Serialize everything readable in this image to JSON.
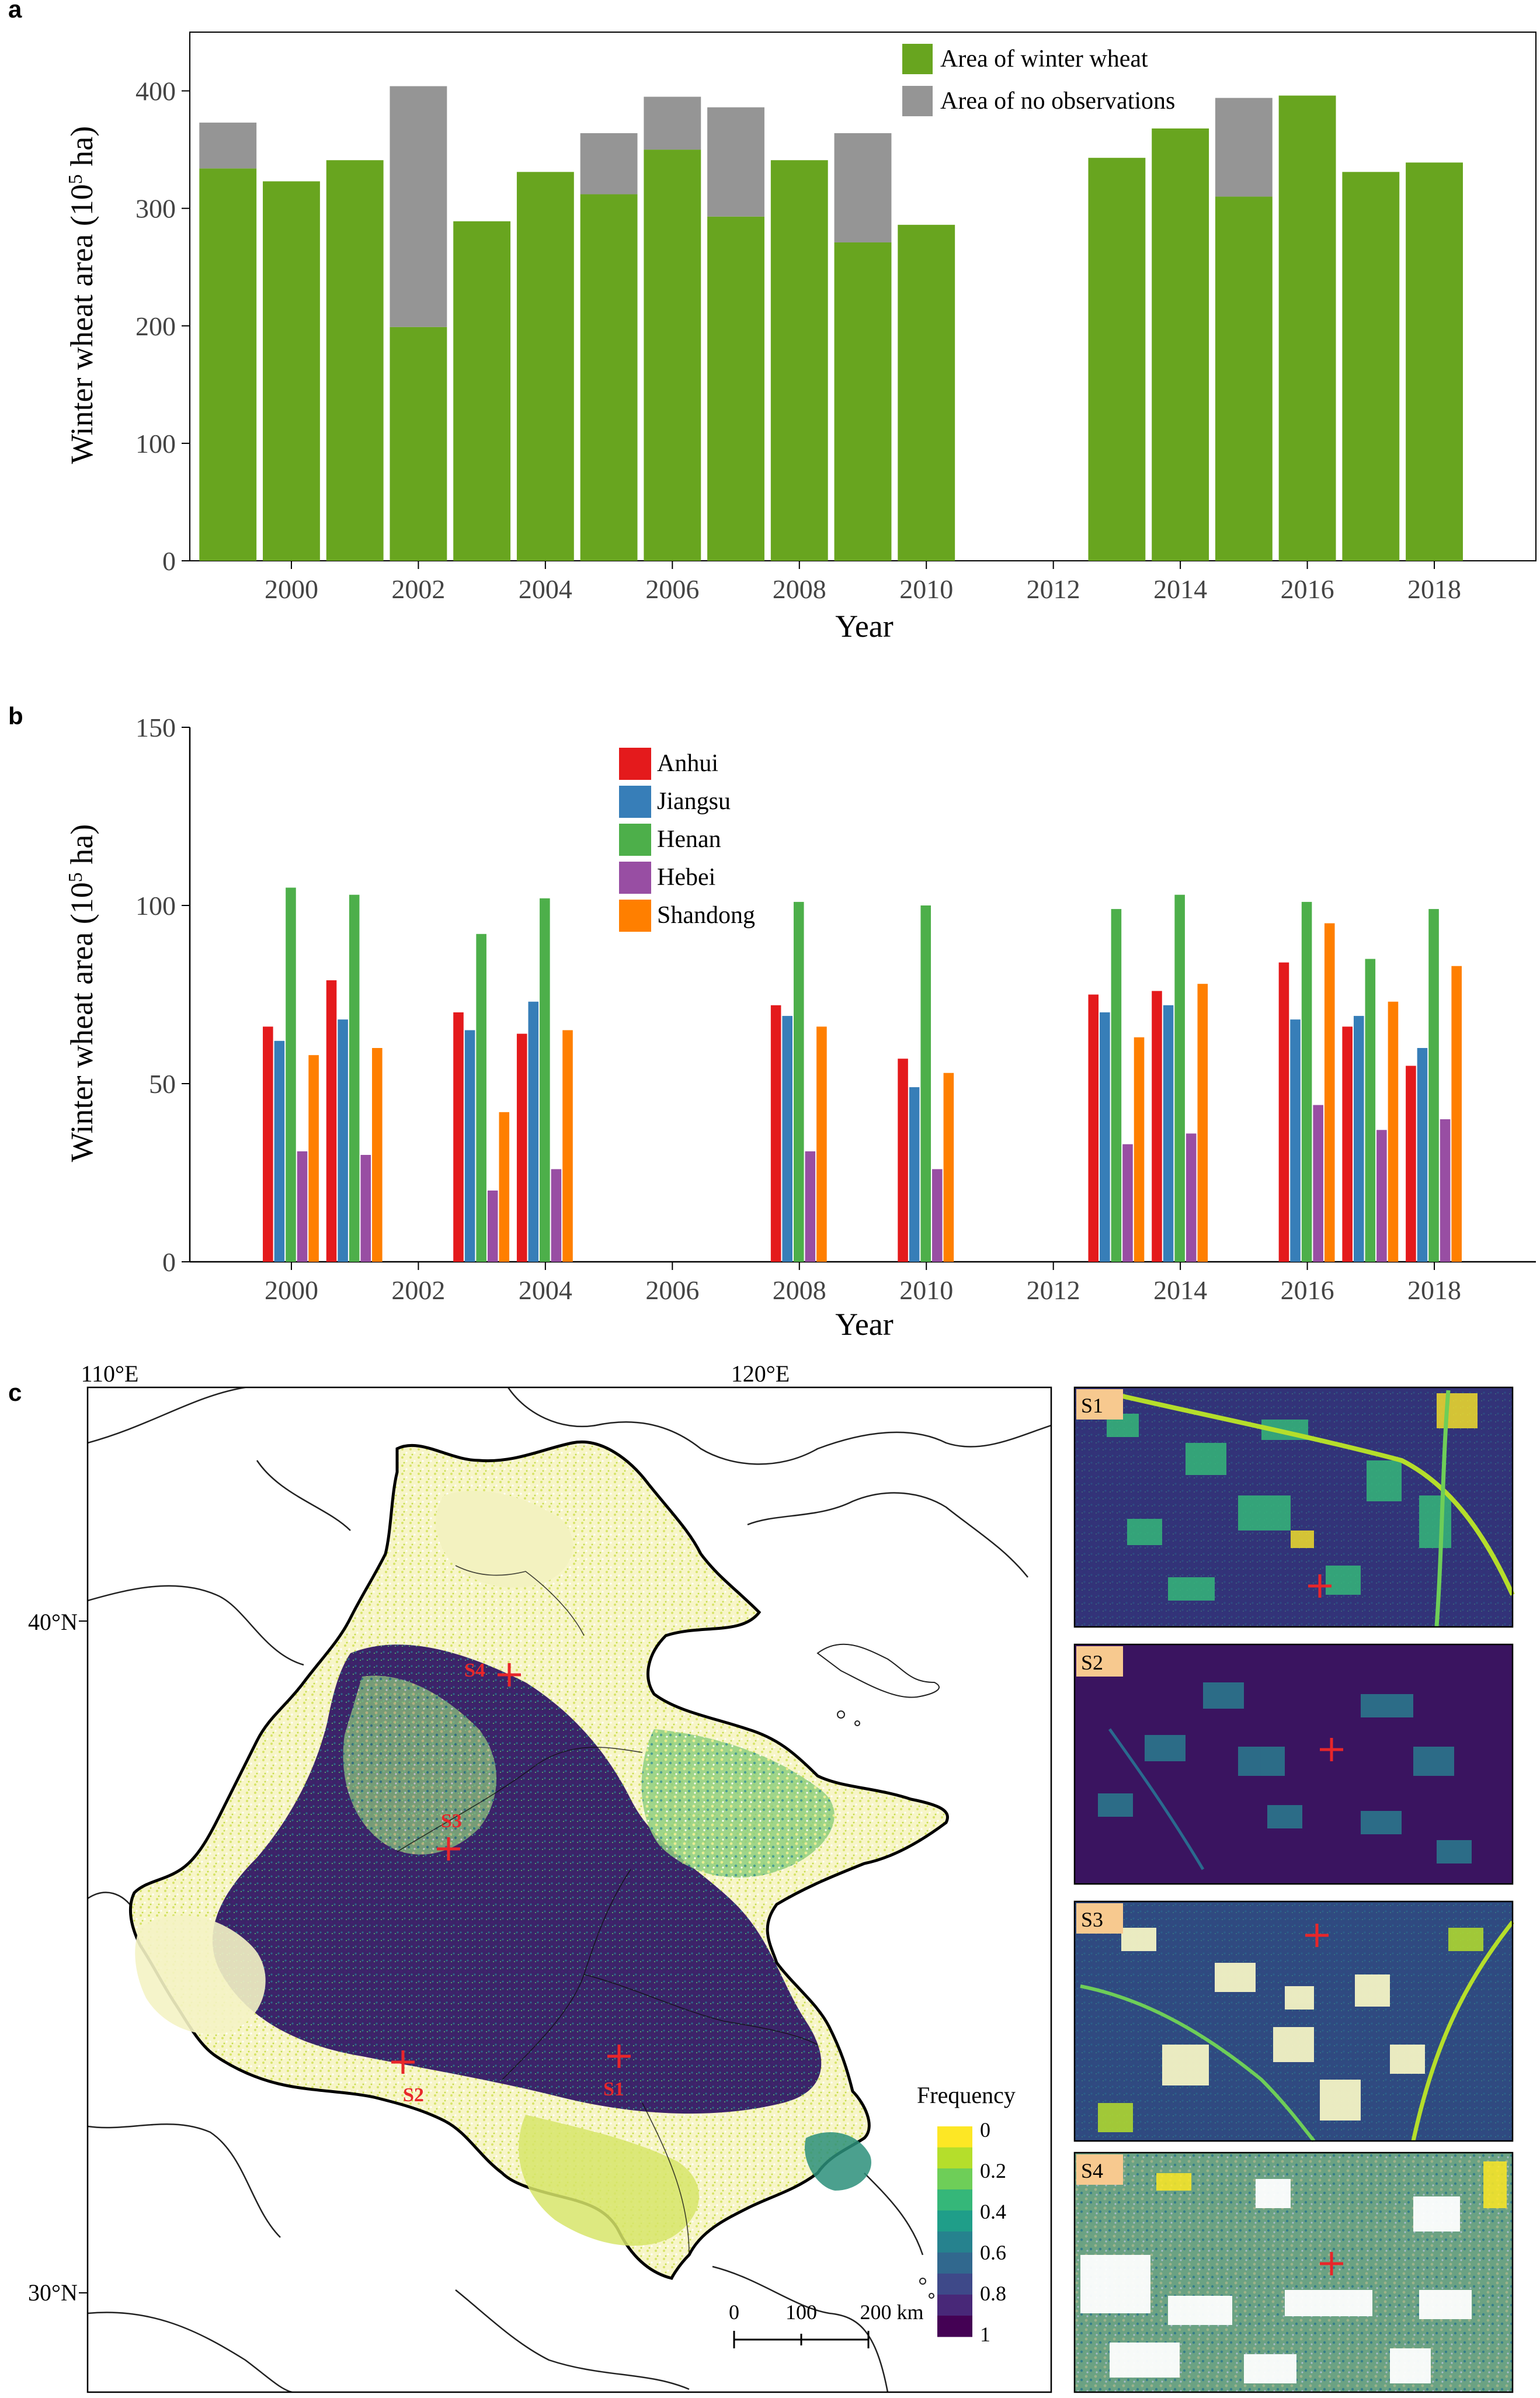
{
  "colors": {
    "wheat": "#68a51f",
    "noobs": "#959595",
    "anhui": "#e41a1c",
    "jiangsu": "#377eb8",
    "henan": "#4daf4a",
    "hebei": "#984ea3",
    "shandong": "#ff7f00",
    "frequency_scale": [
      "#fde725",
      "#b5de2b",
      "#6ece58",
      "#35b779",
      "#1f9e89",
      "#26828e",
      "#31688e",
      "#3e4989",
      "#482878",
      "#440154"
    ]
  },
  "chart_data": [
    {
      "panel": "a",
      "type": "bar",
      "stacked": true,
      "xlabel": "Year",
      "ylabel_main": "Winter wheat area (10",
      "ylabel_sup": "5",
      "ylabel_tail": " ha)",
      "ylim": [
        0,
        450
      ],
      "yticks": [
        0,
        100,
        200,
        300,
        400
      ],
      "xticks": [
        2000,
        2002,
        2004,
        2006,
        2008,
        2010,
        2012,
        2014,
        2016,
        2018
      ],
      "xlim": [
        1998.4,
        2019.6
      ],
      "legend": [
        "Area of winter wheat",
        "Area of no observations"
      ],
      "legend_position": "top-right",
      "years": [
        1999,
        2000,
        2001,
        2002,
        2003,
        2004,
        2005,
        2006,
        2007,
        2008,
        2009,
        2010,
        2013,
        2014,
        2015,
        2016,
        2017,
        2018
      ],
      "series": [
        {
          "name": "Area of winter wheat",
          "values": [
            334,
            323,
            341,
            199,
            289,
            331,
            312,
            350,
            293,
            341,
            271,
            286,
            343,
            368,
            310,
            396,
            331,
            339
          ]
        },
        {
          "name": "Area of no observations",
          "values": [
            39,
            0,
            0,
            205,
            0,
            0,
            52,
            45,
            93,
            0,
            93,
            0,
            0,
            0,
            84,
            0,
            0,
            0
          ]
        }
      ]
    },
    {
      "panel": "b",
      "type": "bar",
      "grouped": true,
      "xlabel": "Year",
      "ylabel_main": "Winter wheat area (10",
      "ylabel_sup": "5",
      "ylabel_tail": " ha)",
      "ylim": [
        0,
        150
      ],
      "yticks": [
        0,
        50,
        100,
        150
      ],
      "xticks": [
        2000,
        2002,
        2004,
        2006,
        2008,
        2010,
        2012,
        2014,
        2016,
        2018
      ],
      "xlim": [
        1998.4,
        2019.6
      ],
      "legend_position": "top-center",
      "years": [
        2000,
        2001,
        2003,
        2004,
        2008,
        2010,
        2013,
        2014,
        2016,
        2017,
        2018
      ],
      "series": [
        {
          "name": "Anhui",
          "values": [
            66,
            79,
            70,
            64,
            72,
            57,
            75,
            76,
            84,
            66,
            55
          ]
        },
        {
          "name": "Jiangsu",
          "values": [
            62,
            68,
            65,
            73,
            69,
            49,
            70,
            72,
            68,
            69,
            60
          ]
        },
        {
          "name": "Henan",
          "values": [
            105,
            103,
            92,
            102,
            101,
            100,
            99,
            103,
            101,
            85,
            99
          ]
        },
        {
          "name": "Hebei",
          "values": [
            31,
            30,
            20,
            26,
            31,
            26,
            33,
            36,
            44,
            37,
            40
          ]
        },
        {
          "name": "Shandong",
          "values": [
            58,
            60,
            42,
            65,
            66,
            53,
            63,
            78,
            95,
            73,
            83
          ]
        }
      ]
    }
  ],
  "map": {
    "panel": "c",
    "lon_labels": [
      "110°E",
      "120°E"
    ],
    "lat_labels": [
      "40°N",
      "30°N"
    ],
    "sites": [
      "S1",
      "S2",
      "S3",
      "S4"
    ],
    "legend_title": "Frequency",
    "legend_labels": [
      "0",
      "0.2",
      "0.4",
      "0.6",
      "0.8",
      "1"
    ],
    "scalebar_labels": [
      "0",
      "100",
      "200 km"
    ]
  },
  "insets": [
    {
      "label": "S1"
    },
    {
      "label": "S2"
    },
    {
      "label": "S3"
    },
    {
      "label": "S4"
    }
  ]
}
